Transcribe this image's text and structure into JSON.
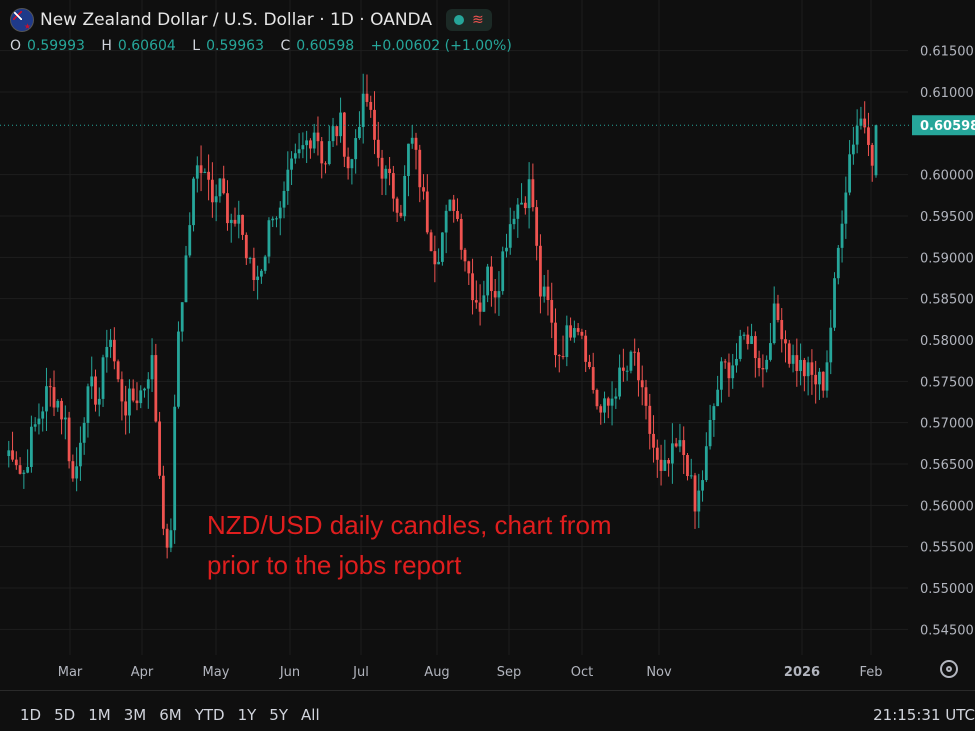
{
  "header": {
    "title": "New Zealand Dollar / U.S. Dollar · 1D · OANDA",
    "ohlc": {
      "o_label": "O",
      "o_value": "0.59993",
      "h_label": "H",
      "h_value": "0.60604",
      "l_label": "L",
      "l_value": "0.59963",
      "c_label": "C",
      "c_value": "0.60598",
      "change": "+0.00602 (+1.00%)"
    },
    "icons": [
      "nz-flag-icon",
      "status-dot-icon",
      "wave-icon"
    ]
  },
  "annotation": {
    "line1": "NZD/USD daily candles, chart from",
    "line2": "prior to the jobs report",
    "color": "#e01e1e"
  },
  "timeframes": [
    "1D",
    "5D",
    "1M",
    "3M",
    "6M",
    "YTD",
    "1Y",
    "5Y",
    "All"
  ],
  "clock": "21:15:31 UTC",
  "colors": {
    "up": "#26a69a",
    "down": "#ef5350",
    "background": "#0f0f0f",
    "grid": "#1e1e1e",
    "last_price_bg": "#26a69a"
  },
  "chart_data": {
    "type": "candlestick",
    "y_ticks": [
      "0.61500",
      "0.61000",
      "0.60598",
      "0.60000",
      "0.59500",
      "0.59000",
      "0.58500",
      "0.58000",
      "0.57500",
      "0.57000",
      "0.56500",
      "0.56000",
      "0.55500",
      "0.55000",
      "0.54500"
    ],
    "last_price": "0.60598",
    "x_ticks": [
      "Mar",
      "Apr",
      "May",
      "Jun",
      "Jul",
      "Aug",
      "Sep",
      "Oct",
      "Nov",
      "2026",
      "Feb"
    ],
    "ylim": [
      0.5425,
      0.6175
    ],
    "close_path": [
      0.566,
      0.567,
      0.563,
      0.568,
      0.571,
      0.574,
      0.573,
      0.57,
      0.562,
      0.571,
      0.574,
      0.573,
      0.582,
      0.575,
      0.572,
      0.573,
      0.574,
      0.578,
      0.563,
      0.551,
      0.58,
      0.59,
      0.6,
      0.602,
      0.598,
      0.6,
      0.592,
      0.596,
      0.59,
      0.587,
      0.59,
      0.596,
      0.595,
      0.6,
      0.602,
      0.604,
      0.606,
      0.601,
      0.605,
      0.606,
      0.6,
      0.607,
      0.609,
      0.603,
      0.6,
      0.598,
      0.596,
      0.605,
      0.6,
      0.594,
      0.59,
      0.594,
      0.597,
      0.592,
      0.587,
      0.584,
      0.588,
      0.586,
      0.592,
      0.596,
      0.597,
      0.599,
      0.586,
      0.584,
      0.578,
      0.58,
      0.583,
      0.581,
      0.575,
      0.571,
      0.572,
      0.575,
      0.576,
      0.578,
      0.572,
      0.568,
      0.563,
      0.565,
      0.567,
      0.566,
      0.559,
      0.564,
      0.571,
      0.576,
      0.577,
      0.578,
      0.581,
      0.579,
      0.576,
      0.583,
      0.582,
      0.578,
      0.577,
      0.576,
      0.575,
      0.575,
      0.584,
      0.595,
      0.603,
      0.607,
      0.606,
      0.6
    ]
  }
}
